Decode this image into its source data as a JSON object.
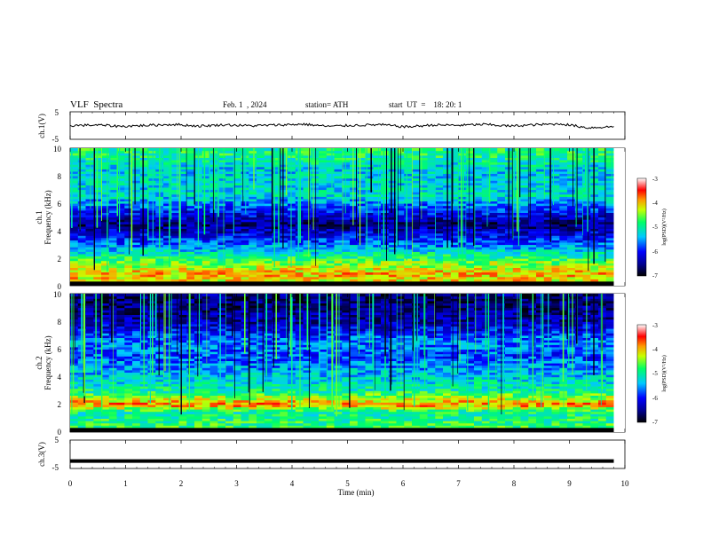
{
  "header": {
    "title": "VLF  Spectra",
    "date": "Feb. 1  , 2024",
    "station": "station= ATH",
    "start_ut": "start  UT  =    18: 20: 1"
  },
  "panels": {
    "ch1_wave": {
      "ylabel": "ch.1(V)",
      "ticks": [
        "5",
        "-5"
      ]
    },
    "ch1_spec": {
      "ylabel_top": "ch.1",
      "ylabel": "Frequency  (kHz)",
      "ticks": [
        "10",
        "8",
        "6",
        "4",
        "2",
        "0"
      ]
    },
    "ch2_spec": {
      "ylabel_top": "ch.2",
      "ylabel": "Frequency  (kHz)",
      "ticks": [
        "10",
        "8",
        "6",
        "4",
        "2",
        "0"
      ]
    },
    "ch3_wave": {
      "ylabel": "ch.3(V)",
      "ticks": [
        "5",
        "-5"
      ]
    }
  },
  "xaxis": {
    "label": "Time  (min)",
    "ticks": [
      "0",
      "1",
      "2",
      "3",
      "4",
      "5",
      "6",
      "7",
      "8",
      "9",
      "10"
    ]
  },
  "colorbar": {
    "label": "log(PSD)(V²/Hz)",
    "ticks": [
      "-3",
      "-4",
      "-5",
      "-6",
      "-7"
    ]
  },
  "chart_data": [
    {
      "type": "line",
      "series": [
        {
          "values": [
            0,
            0.2,
            -0.3,
            0.1,
            0.4,
            -0.2,
            0.3,
            -0.1,
            0.2,
            0.5,
            -0.3,
            0.1,
            0.3,
            -0.5,
            0.2,
            0.1,
            0.4,
            -0.2,
            0.3,
            0.6,
            -0.8,
            -0.4
          ]
        }
      ],
      "x_range": [
        0,
        9.8
      ],
      "ylim": [
        -5,
        5
      ],
      "ylabel": "ch.1(V)"
    },
    {
      "type": "heatmap",
      "ylabel": "Frequency  (kHz)",
      "ylim": [
        0,
        10
      ],
      "xlim": [
        0,
        10
      ],
      "data_x_end": 9.8,
      "z_range": [
        -7,
        -3
      ],
      "z_label": "log(PSD)(V²/Hz)",
      "bands": [
        {
          "f": 0.3,
          "z": -4.2
        },
        {
          "f": 0.9,
          "z": -4.0
        },
        {
          "f": 1.8,
          "z": -4.6
        },
        {
          "f": 2.0,
          "z": -4.8
        },
        {
          "f": 3.2,
          "z": -5.8
        },
        {
          "f": 4.5,
          "z": -6.6
        },
        {
          "f": 5.8,
          "z": -5.7
        },
        {
          "f": 6.6,
          "z": -5.2
        },
        {
          "f": 8.5,
          "z": -5.3
        },
        {
          "f": 9.5,
          "z": -4.9
        }
      ]
    },
    {
      "type": "heatmap",
      "ylabel": "Frequency  (kHz)",
      "ylim": [
        0,
        10
      ],
      "xlim": [
        0,
        10
      ],
      "data_x_end": 9.8,
      "z_range": [
        -7,
        -3
      ],
      "z_label": "log(PSD)(V²/Hz)",
      "bands": [
        {
          "f": 0.6,
          "z": -4.8
        },
        {
          "f": 1.5,
          "z": -5.0
        },
        {
          "f": 2.0,
          "z": -3.8
        },
        {
          "f": 3.0,
          "z": -5.0
        },
        {
          "f": 4.0,
          "z": -5.3
        },
        {
          "f": 5.5,
          "z": -5.8
        },
        {
          "f": 6.6,
          "z": -5.6
        },
        {
          "f": 8.0,
          "z": -6.4
        },
        {
          "f": 9.5,
          "z": -6.6
        }
      ]
    },
    {
      "type": "line",
      "series": [
        {
          "values": [
            -2.4,
            -2.4
          ]
        }
      ],
      "x_range": [
        0,
        9.8
      ],
      "ylim": [
        -5,
        5
      ],
      "ylabel": "ch.3(V)"
    }
  ]
}
